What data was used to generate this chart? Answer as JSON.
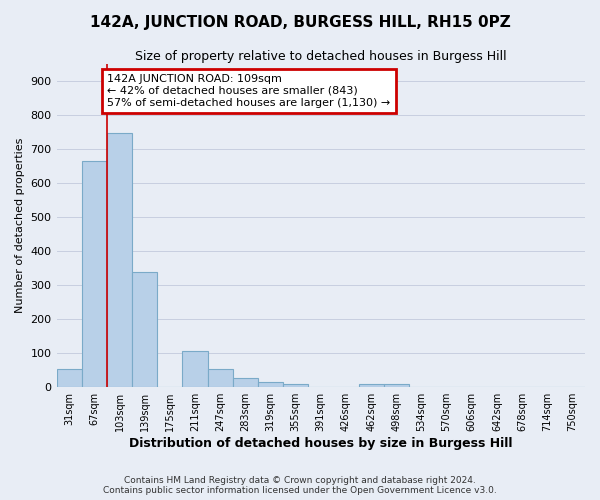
{
  "title": "142A, JUNCTION ROAD, BURGESS HILL, RH15 0PZ",
  "subtitle": "Size of property relative to detached houses in Burgess Hill",
  "xlabel": "Distribution of detached houses by size in Burgess Hill",
  "ylabel": "Number of detached properties",
  "footer1": "Contains HM Land Registry data © Crown copyright and database right 2024.",
  "footer2": "Contains public sector information licensed under the Open Government Licence v3.0.",
  "bin_labels": [
    "31sqm",
    "67sqm",
    "103sqm",
    "139sqm",
    "175sqm",
    "211sqm",
    "247sqm",
    "283sqm",
    "319sqm",
    "355sqm",
    "391sqm",
    "426sqm",
    "462sqm",
    "498sqm",
    "534sqm",
    "570sqm",
    "606sqm",
    "642sqm",
    "678sqm",
    "714sqm",
    "750sqm"
  ],
  "bar_heights": [
    55,
    665,
    748,
    338,
    0,
    107,
    55,
    27,
    14,
    10,
    0,
    0,
    8,
    10,
    0,
    0,
    0,
    0,
    0,
    0,
    0
  ],
  "bar_color": "#b8d0e8",
  "bar_edge_color": "#7aaac8",
  "grid_color": "#c8cfe0",
  "background_color": "#e8edf5",
  "vline_color": "#cc0000",
  "vline_x_index": 2,
  "annotation_text": "142A JUNCTION ROAD: 109sqm\n← 42% of detached houses are smaller (843)\n57% of semi-detached houses are larger (1,130) →",
  "annotation_box_color": "#ffffff",
  "annotation_border_color": "#cc0000",
  "ylim": [
    0,
    950
  ],
  "yticks": [
    0,
    100,
    200,
    300,
    400,
    500,
    600,
    700,
    800,
    900
  ]
}
